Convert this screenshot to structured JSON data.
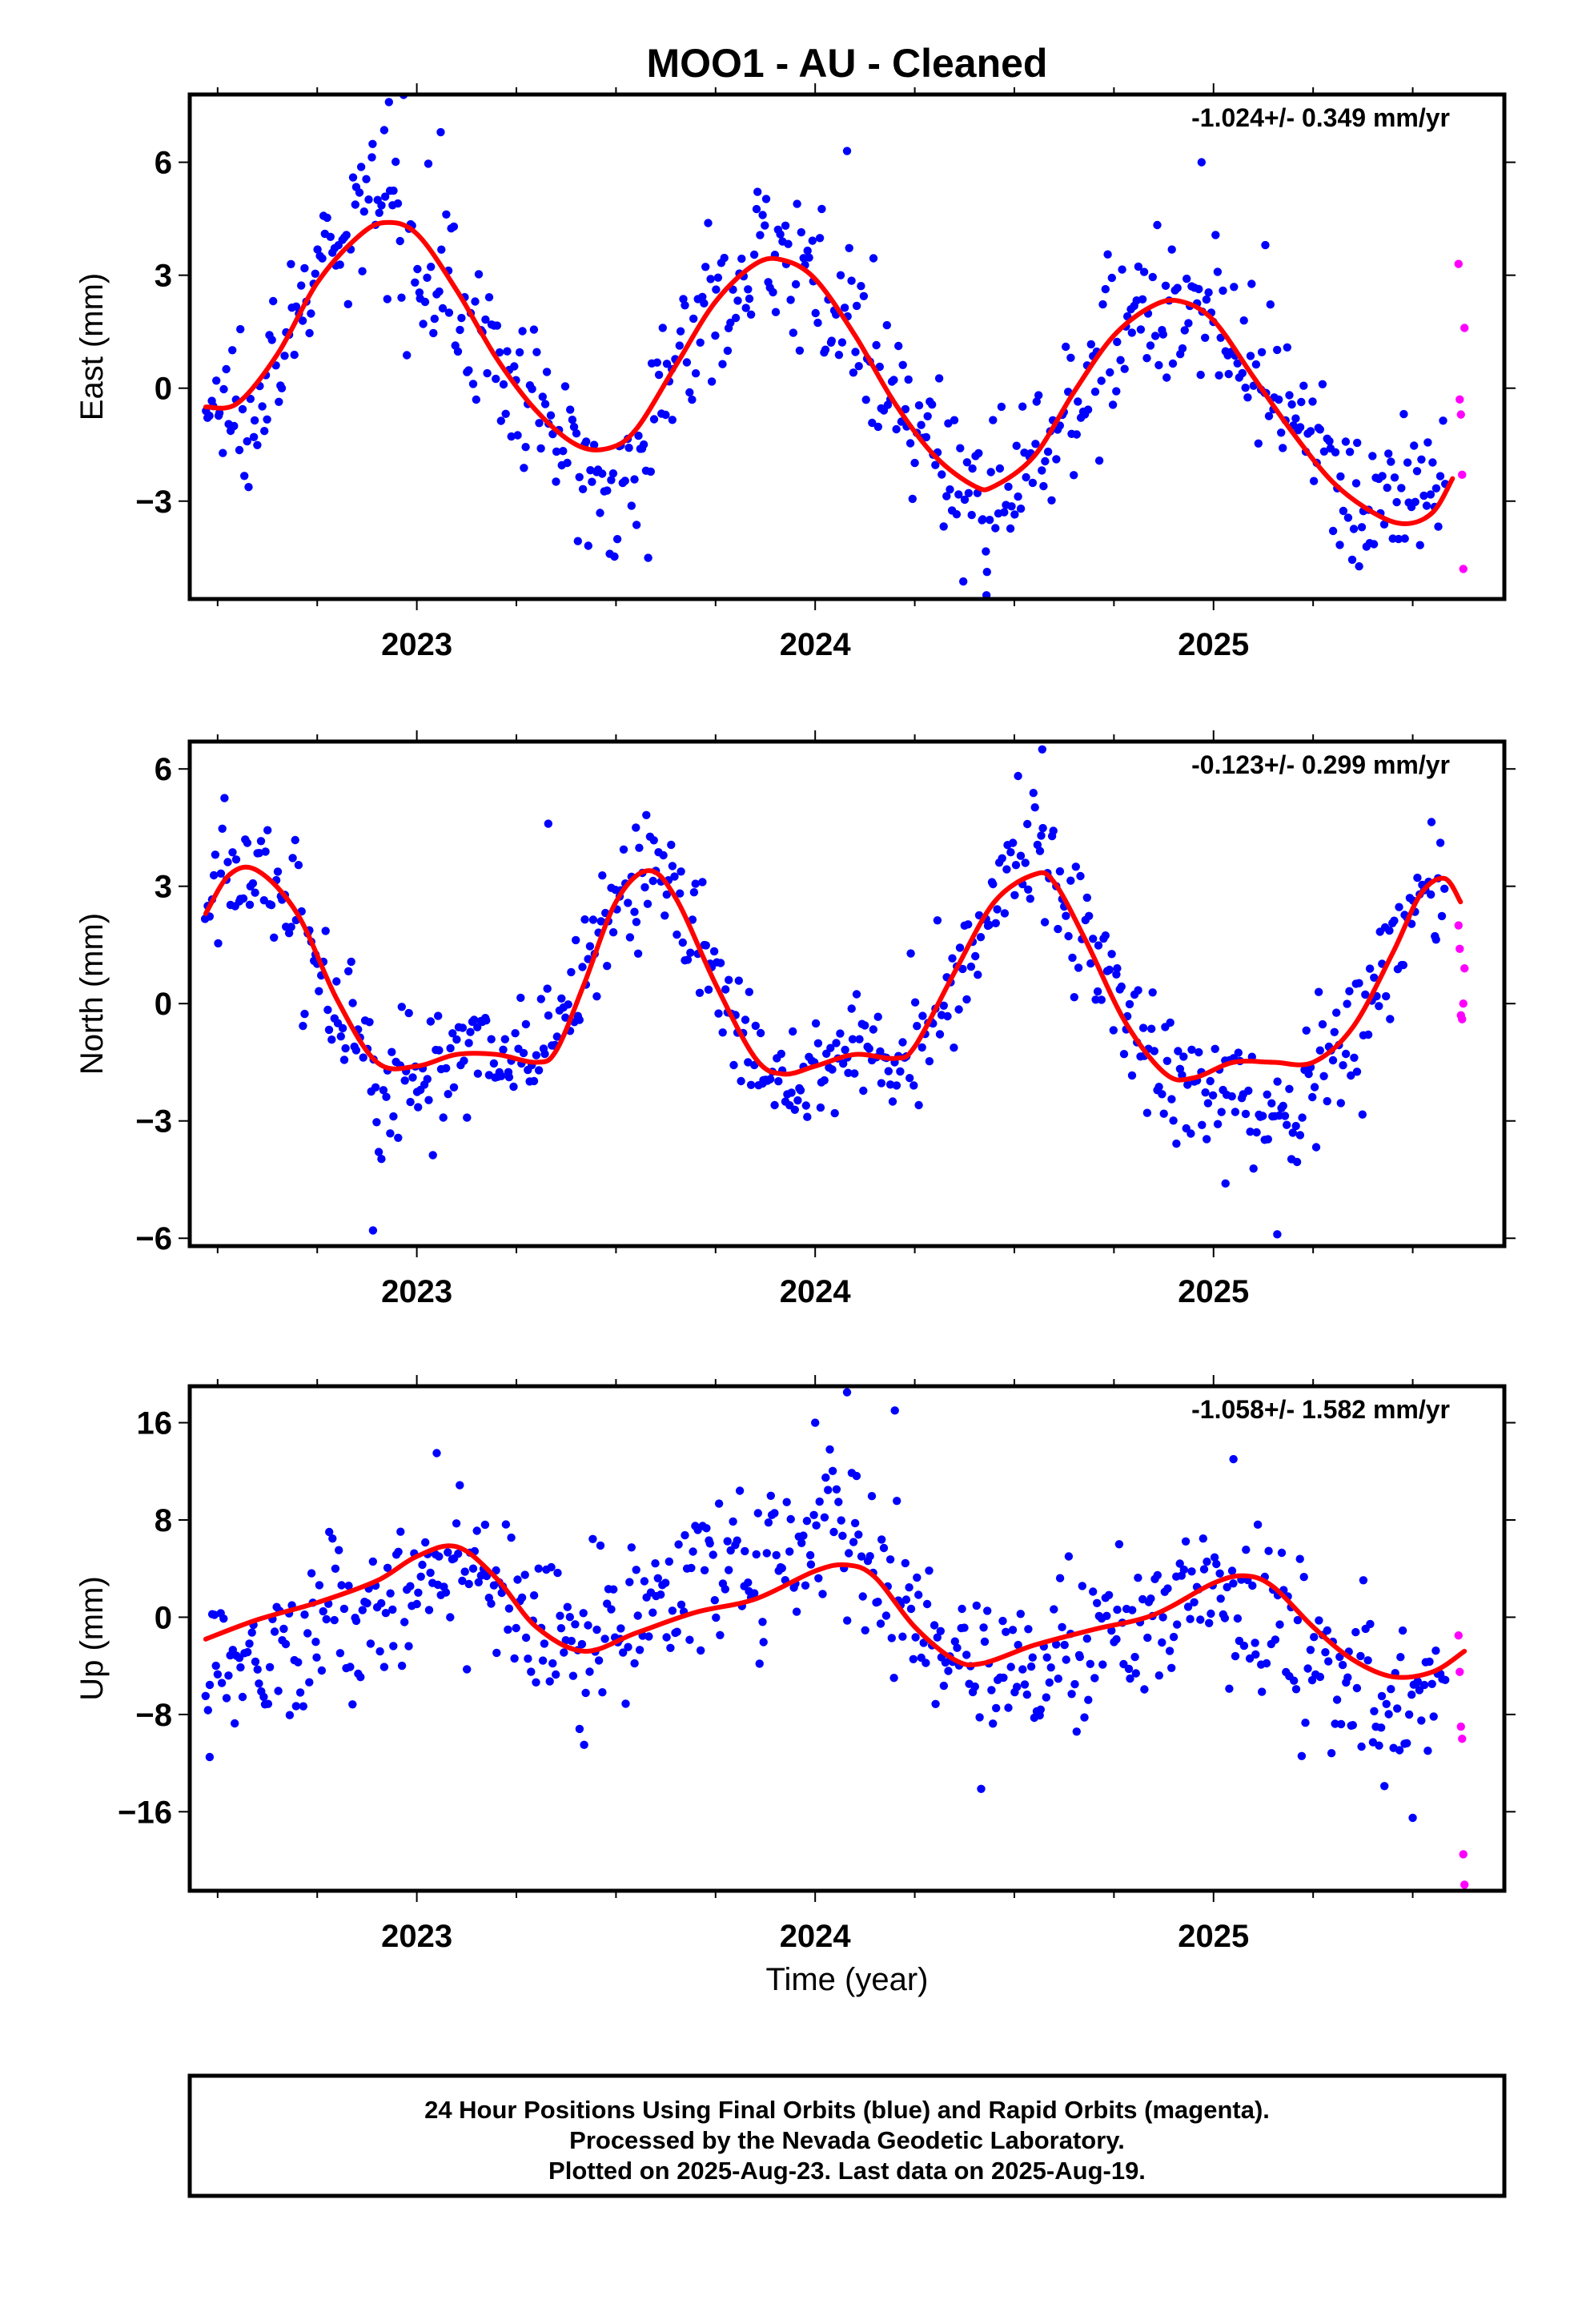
{
  "title": "MOO1  - AU - Cleaned",
  "xlabel": "Time (year)",
  "footer": {
    "line1": "24 Hour Positions Using Final Orbits (blue) and Rapid Orbits (magenta).",
    "line2": "Processed by the Nevada Geodetic Laboratory.",
    "line3": "Plotted on 2025-Aug-23. Last data on 2025-Aug-19."
  },
  "colors": {
    "final": "#0000ff",
    "rapid": "#ff00ff",
    "model": "#ff0000",
    "frame": "#000000"
  },
  "chart_data": [
    {
      "type": "scatter",
      "ylabel": "East (mm)",
      "rate": "-1.024+/- 0.349 mm/yr",
      "xlim": [
        2022.43,
        2025.73
      ],
      "ylim": [
        -5.6,
        7.8
      ],
      "xticks": [
        2023,
        2024,
        2025
      ],
      "xtick_labels": [
        "2023",
        "2024",
        "2025"
      ],
      "yticks": [
        6,
        3,
        0,
        -3
      ],
      "ytick_labels": [
        "6",
        "3",
        "0",
        "−3"
      ],
      "model_curve": {
        "x": [
          2022.47,
          2022.55,
          2022.65,
          2022.75,
          2022.85,
          2022.92,
          2023.0,
          2023.1,
          2023.2,
          2023.3,
          2023.4,
          2023.48,
          2023.55,
          2023.65,
          2023.75,
          2023.85,
          2023.92,
          2024.0,
          2024.1,
          2024.2,
          2024.3,
          2024.4,
          2024.45,
          2024.55,
          2024.65,
          2024.75,
          2024.85,
          2024.92,
          2025.0,
          2025.1,
          2025.2,
          2025.3,
          2025.4,
          2025.48,
          2025.55,
          2025.6
        ],
        "y": [
          -0.5,
          -0.4,
          0.9,
          2.8,
          4.0,
          4.4,
          4.1,
          2.6,
          0.8,
          -0.6,
          -1.5,
          -1.6,
          -1.1,
          0.6,
          2.3,
          3.3,
          3.4,
          2.9,
          1.4,
          -0.4,
          -1.8,
          -2.6,
          -2.6,
          -1.8,
          -0.1,
          1.4,
          2.2,
          2.3,
          1.8,
          0.3,
          -1.2,
          -2.5,
          -3.3,
          -3.6,
          -3.3,
          -2.4
        ]
      },
      "final_series": {
        "anchor_x": [
          2022.47,
          2022.55,
          2022.65,
          2022.75,
          2022.85,
          2022.92,
          2023.0,
          2023.1,
          2023.2,
          2023.3,
          2023.4,
          2023.48,
          2023.55,
          2023.65,
          2023.75,
          2023.85,
          2023.92,
          2024.0,
          2024.1,
          2024.2,
          2024.3,
          2024.4,
          2024.45,
          2024.55,
          2024.65,
          2024.75,
          2024.85,
          2024.92,
          2025.0,
          2025.1,
          2025.2,
          2025.3,
          2025.4,
          2025.48,
          2025.55,
          2025.58
        ],
        "anchor_y": [
          -0.6,
          -0.5,
          0.9,
          2.9,
          4.3,
          5.2,
          4.0,
          2.4,
          0.7,
          -0.7,
          -1.9,
          -2.5,
          -1.9,
          0.6,
          2.4,
          3.4,
          3.7,
          2.9,
          1.4,
          -0.6,
          -1.8,
          -2.6,
          -3.0,
          -1.8,
          -0.1,
          1.4,
          2.2,
          2.4,
          1.7,
          0.3,
          -1.2,
          -2.3,
          -3.0,
          -3.1,
          -2.7,
          -2.4
        ],
        "spread": 1.0,
        "count": 600
      },
      "outliers_final": {
        "x": [
          2022.93,
          2023.06,
          2024.08,
          2024.43,
          2024.97,
          2025.13
        ],
        "y": [
          7.6,
          6.8,
          6.3,
          -5.5,
          6.0,
          3.8
        ]
      },
      "rapid_x": [
        2025.615,
        2025.618,
        2025.621,
        2025.624,
        2025.627,
        2025.63
      ],
      "rapid_y": [
        3.3,
        -0.3,
        -0.7,
        -2.3,
        -4.8,
        1.6
      ]
    },
    {
      "type": "scatter",
      "ylabel": "North (mm)",
      "rate": "-0.123+/- 0.299 mm/yr",
      "xlim": [
        2022.43,
        2025.73
      ],
      "ylim": [
        -6.2,
        6.7
      ],
      "xticks": [
        2023,
        2024,
        2025
      ],
      "xtick_labels": [
        "2023",
        "2024",
        "2025"
      ],
      "yticks": [
        6,
        3,
        0,
        -3,
        -6
      ],
      "ytick_labels": [
        "6",
        "3",
        "0",
        "−3",
        "−6"
      ],
      "model_curve": {
        "x": [
          2022.47,
          2022.53,
          2022.6,
          2022.7,
          2022.8,
          2022.9,
          2023.0,
          2023.1,
          2023.2,
          2023.3,
          2023.35,
          2023.42,
          2023.5,
          2023.58,
          2023.65,
          2023.75,
          2023.85,
          2023.92,
          2024.0,
          2024.1,
          2024.2,
          2024.25,
          2024.35,
          2024.45,
          2024.55,
          2024.6,
          2024.68,
          2024.78,
          2024.88,
          2024.95,
          2025.05,
          2025.15,
          2025.25,
          2025.35,
          2025.45,
          2025.52,
          2025.58,
          2025.62
        ],
        "y": [
          2.3,
          3.3,
          3.4,
          2.3,
          0.1,
          -1.5,
          -1.6,
          -1.3,
          -1.3,
          -1.5,
          -1.2,
          0.5,
          2.6,
          3.4,
          2.7,
          0.5,
          -1.4,
          -1.8,
          -1.6,
          -1.3,
          -1.4,
          -1.1,
          0.8,
          2.6,
          3.3,
          3.1,
          1.6,
          -0.5,
          -1.8,
          -1.9,
          -1.5,
          -1.5,
          -1.5,
          -0.6,
          1.3,
          2.8,
          3.2,
          2.6
        ]
      },
      "final_series": {
        "anchor_x": [
          2022.47,
          2022.53,
          2022.6,
          2022.7,
          2022.8,
          2022.9,
          2023.0,
          2023.1,
          2023.2,
          2023.3,
          2023.35,
          2023.42,
          2023.5,
          2023.58,
          2023.65,
          2023.75,
          2023.85,
          2023.92,
          2024.0,
          2024.1,
          2024.2,
          2024.25,
          2024.35,
          2024.45,
          2024.55,
          2024.6,
          2024.68,
          2024.78,
          2024.88,
          2024.95,
          2025.05,
          2025.15,
          2025.25,
          2025.35,
          2025.45,
          2025.52,
          2025.58
        ],
        "anchor_y": [
          2.3,
          3.3,
          3.4,
          2.3,
          0.1,
          -2.2,
          -1.7,
          -1.3,
          -1.3,
          -1.3,
          -0.7,
          0.8,
          2.6,
          3.4,
          2.7,
          0.5,
          -1.4,
          -2.2,
          -1.6,
          -1.2,
          -1.4,
          -0.9,
          0.9,
          3.0,
          4.2,
          3.3,
          1.6,
          -0.5,
          -1.8,
          -2.4,
          -2.2,
          -3.0,
          -2.2,
          -0.6,
          1.3,
          2.8,
          3.0
        ],
        "spread": 0.85,
        "count": 600
      },
      "outliers_final": {
        "x": [
          2022.89,
          2023.33,
          2023.55,
          2024.57,
          2025.03,
          2025.16
        ],
        "y": [
          -5.8,
          4.6,
          4.5,
          6.5,
          -4.6,
          -5.9
        ]
      },
      "rapid_x": [
        2025.615,
        2025.618,
        2025.621,
        2025.624,
        2025.627,
        2025.63
      ],
      "rapid_y": [
        2.0,
        1.4,
        -0.3,
        -0.4,
        0.0,
        0.9
      ]
    },
    {
      "type": "scatter",
      "ylabel": "Up (mm)",
      "rate": "-1.058+/- 1.582 mm/yr",
      "xlim": [
        2022.43,
        2025.73
      ],
      "ylim": [
        -22.5,
        19.0
      ],
      "xticks": [
        2023,
        2024,
        2025
      ],
      "xtick_labels": [
        "2023",
        "2024",
        "2025"
      ],
      "yticks": [
        16,
        8,
        0,
        -8,
        -16
      ],
      "ytick_labels": [
        "16",
        "8",
        "0",
        "−8",
        "−16"
      ],
      "model_curve": {
        "x": [
          2022.47,
          2022.6,
          2022.75,
          2022.9,
          2023.0,
          2023.1,
          2023.2,
          2023.3,
          2023.42,
          2023.55,
          2023.7,
          2023.85,
          2024.0,
          2024.08,
          2024.15,
          2024.25,
          2024.35,
          2024.42,
          2024.55,
          2024.7,
          2024.85,
          2025.0,
          2025.08,
          2025.15,
          2025.25,
          2025.35,
          2025.45,
          2025.55,
          2025.63
        ],
        "y": [
          -1.8,
          -0.2,
          1.2,
          3.0,
          5.0,
          5.8,
          3.2,
          -0.8,
          -2.8,
          -1.3,
          0.4,
          1.5,
          3.8,
          4.3,
          3.3,
          -0.8,
          -3.5,
          -3.8,
          -2.3,
          -1.0,
          0.2,
          2.8,
          3.4,
          2.5,
          -0.8,
          -3.5,
          -4.9,
          -4.5,
          -2.8
        ]
      },
      "final_series": {
        "anchor_x": [
          2022.47,
          2022.6,
          2022.75,
          2022.9,
          2023.0,
          2023.1,
          2023.2,
          2023.3,
          2023.42,
          2023.55,
          2023.7,
          2023.85,
          2024.0,
          2024.08,
          2024.15,
          2024.25,
          2024.35,
          2024.42,
          2024.55,
          2024.7,
          2024.85,
          2025.0,
          2025.08,
          2025.15,
          2025.25,
          2025.35,
          2025.45,
          2025.55,
          2025.58
        ],
        "anchor_y": [
          -4.5,
          -2.5,
          -1.0,
          0.5,
          2.0,
          5.5,
          3.0,
          -0.8,
          -2.5,
          0.5,
          3.0,
          4.0,
          6.5,
          8.5,
          5.0,
          -0.5,
          -4.0,
          -3.5,
          -3.0,
          -1.5,
          -0.5,
          2.5,
          1.5,
          0.5,
          -3.5,
          -6.0,
          -8.0,
          -6.5,
          -5.5
        ],
        "spread": 3.2,
        "count": 600
      },
      "outliers_final": {
        "x": [
          2022.48,
          2023.05,
          2023.42,
          2024.0,
          2024.08,
          2024.2,
          2025.05,
          2025.5
        ],
        "y": [
          -11.5,
          13.5,
          -10.5,
          16.0,
          18.5,
          17.0,
          13.0,
          -16.5
        ]
      },
      "rapid_x": [
        2025.615,
        2025.618,
        2025.621,
        2025.624,
        2025.627,
        2025.63
      ],
      "rapid_y": [
        -1.5,
        -4.5,
        -9.0,
        -10.0,
        -19.5,
        -22.0
      ]
    }
  ]
}
